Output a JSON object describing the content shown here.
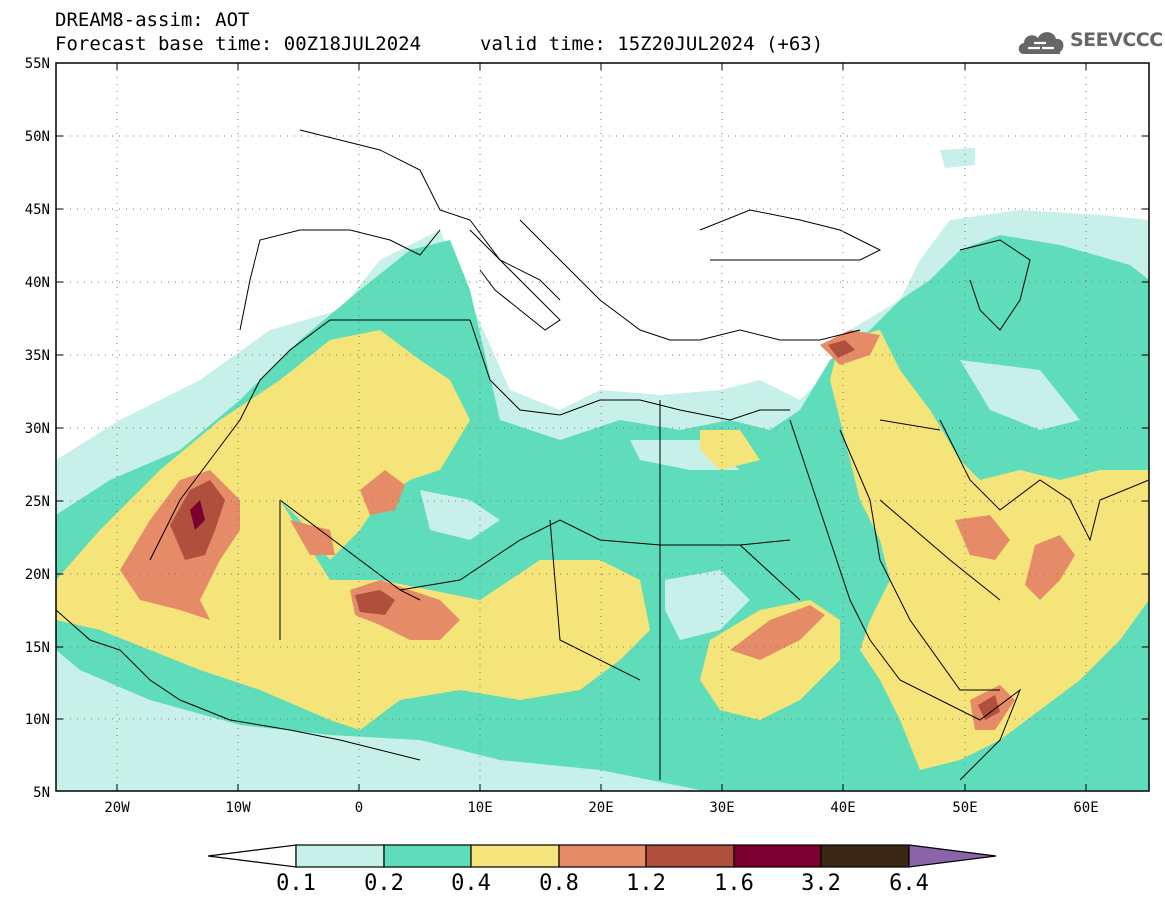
{
  "header": {
    "line1": "DREAM8-assim: AOT",
    "line2": "Forecast base time: 00Z18JUL2024",
    "valid": "valid time: 15Z20JUL2024 (+63)"
  },
  "logo": {
    "text": "SEEVCCC",
    "icon": "cloud-icon"
  },
  "map": {
    "lon_range": [
      -25,
      65
    ],
    "lat_range": [
      5,
      55
    ],
    "lat_ticks": [
      "5N",
      "10N",
      "15N",
      "20N",
      "25N",
      "30N",
      "35N",
      "40N",
      "45N",
      "50N",
      "55N"
    ],
    "lon_ticks": [
      "20W",
      "10W",
      "0",
      "10E",
      "20E",
      "30E",
      "40E",
      "50E",
      "60E"
    ],
    "grid": "dotted"
  },
  "colorbar": {
    "labels": [
      "0.1",
      "0.2",
      "0.4",
      "0.8",
      "1.2",
      "1.6",
      "3.2",
      "6.4"
    ],
    "colors": [
      "#c6f0e8",
      "#5fdcb9",
      "#f5e47a",
      "#e58b68",
      "#b04f3c",
      "#7b0030",
      "#3a2614",
      "#8a64a8"
    ],
    "under_color": "#ffffff"
  }
}
